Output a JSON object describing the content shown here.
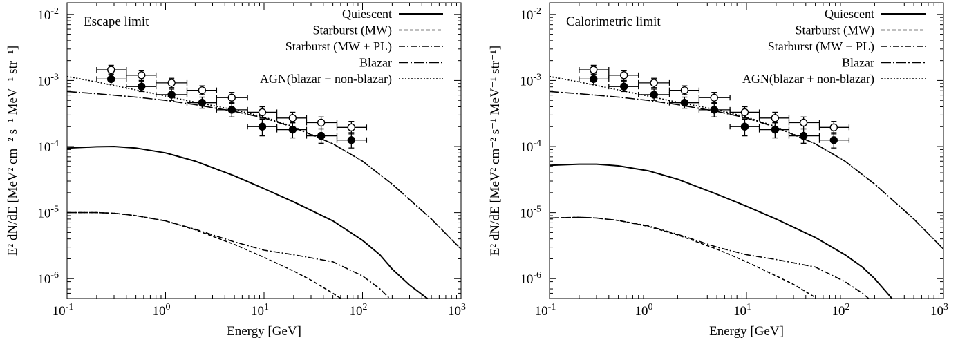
{
  "chart_data": [
    {
      "type": "line",
      "title": "Escape limit",
      "xlabel": "Energy [GeV]",
      "ylabel": "E² dN/dE [MeV² cm⁻² s⁻¹ MeV⁻¹ str⁻¹]",
      "xscale": "log",
      "yscale": "log",
      "xlim": [
        0.1,
        1000
      ],
      "ylim": [
        5e-07,
        0.015
      ],
      "xticks": [
        {
          "value": 0.1,
          "mant": "10",
          "exp": "-1"
        },
        {
          "value": 1,
          "mant": "10",
          "exp": "0"
        },
        {
          "value": 10,
          "mant": "10",
          "exp": "1"
        },
        {
          "value": 100,
          "mant": "10",
          "exp": "2"
        },
        {
          "value": 1000,
          "mant": "10",
          "exp": "3"
        }
      ],
      "yticks": [
        {
          "value": 1e-06,
          "mant": "10",
          "exp": "-6"
        },
        {
          "value": 1e-05,
          "mant": "10",
          "exp": "-5"
        },
        {
          "value": 0.0001,
          "mant": "10",
          "exp": "-4"
        },
        {
          "value": 0.001,
          "mant": "10",
          "exp": "-3"
        },
        {
          "value": 0.01,
          "mant": "10",
          "exp": "-2"
        }
      ],
      "legend_position": "top-right",
      "series": [
        {
          "name": "Quiescent",
          "style": "solid",
          "x": [
            0.1,
            0.2,
            0.3,
            0.5,
            1,
            2,
            5,
            10,
            20,
            50,
            100,
            150,
            200,
            300,
            500
          ],
          "y": [
            9.5e-05,
            9.9e-05,
            0.0001,
            9.5e-05,
            8e-05,
            6e-05,
            3.6e-05,
            2.3e-05,
            1.45e-05,
            7.5e-06,
            3.8e-06,
            2.3e-06,
            1.4e-06,
            8e-07,
            4.5e-07
          ]
        },
        {
          "name": "Starburst (MW)",
          "style": "dash-short",
          "x": [
            0.1,
            0.2,
            0.3,
            0.5,
            1,
            2,
            5,
            10,
            20,
            30,
            50,
            70
          ],
          "y": [
            1e-05,
            1e-05,
            9.8e-06,
            9e-06,
            7.5e-06,
            5.5e-06,
            3.3e-06,
            2.1e-06,
            1.3e-06,
            9.5e-07,
            6e-07,
            4.3e-07
          ]
        },
        {
          "name": "Starburst (MW + PL)",
          "style": "dash-dot",
          "x": [
            0.1,
            0.2,
            0.3,
            0.5,
            1,
            2,
            5,
            10,
            20,
            50,
            100,
            150,
            200
          ],
          "y": [
            1e-05,
            1e-05,
            9.8e-06,
            9e-06,
            7.5e-06,
            5.6e-06,
            3.6e-06,
            2.7e-06,
            2.3e-06,
            1.8e-06,
            1.1e-06,
            7e-07,
            4.6e-07
          ]
        },
        {
          "name": "Blazar",
          "style": "dash-dot-long",
          "x": [
            0.1,
            0.2,
            0.5,
            1,
            2,
            5,
            10,
            20,
            50,
            100,
            200,
            500,
            1000
          ],
          "y": [
            0.00068,
            0.00063,
            0.00056,
            0.0005,
            0.00043,
            0.00034,
            0.00027,
            0.000195,
            0.00011,
            6e-05,
            2.7e-05,
            8e-06,
            2.8e-06
          ]
        },
        {
          "name": "AGN(blazar + non-blazar)",
          "style": "dotted",
          "x": [
            0.1,
            0.2,
            0.5,
            1,
            2,
            5,
            10,
            20,
            50,
            100,
            200,
            500,
            1000
          ],
          "y": [
            0.00115,
            0.00095,
            0.00072,
            0.00058,
            0.00047,
            0.00036,
            0.00028,
            0.0002,
            0.00011,
            6e-05,
            2.7e-05,
            8e-06,
            2.8e-06
          ]
        }
      ],
      "data_points": [
        {
          "name": "open",
          "x": [
            0.28,
            0.57,
            1.15,
            2.35,
            4.7,
            9.6,
            19.5,
            38,
            77
          ],
          "xlow": [
            0.2,
            0.4,
            0.8,
            1.65,
            3.3,
            6.8,
            13.5,
            27,
            55
          ],
          "xhigh": [
            0.4,
            0.8,
            1.65,
            3.3,
            6.8,
            13.5,
            27,
            55,
            110
          ],
          "y": [
            0.00145,
            0.0012,
            0.00092,
            0.00071,
            0.00055,
            0.00033,
            0.00027,
            0.00023,
            0.000195
          ],
          "ylow": [
            0.00125,
            0.001,
            0.00078,
            0.00061,
            0.00046,
            0.00027,
            0.00022,
            0.000185,
            0.000155
          ],
          "yhigh": [
            0.0017,
            0.0014,
            0.00108,
            0.00083,
            0.00066,
            0.0004,
            0.00033,
            0.00028,
            0.00024
          ]
        },
        {
          "name": "filled",
          "x": [
            0.28,
            0.57,
            1.15,
            2.35,
            4.7,
            9.6,
            19.5,
            38,
            77
          ],
          "xlow": [
            0.2,
            0.4,
            0.8,
            1.65,
            3.3,
            6.8,
            13.5,
            27,
            55
          ],
          "xhigh": [
            0.4,
            0.8,
            1.65,
            3.3,
            6.8,
            13.5,
            27,
            55,
            110
          ],
          "y": [
            0.00105,
            0.00081,
            0.00061,
            0.00046,
            0.00036,
            0.0002,
            0.00018,
            0.000145,
            0.000125
          ],
          "ylow": [
            0.00088,
            0.00068,
            0.0005,
            0.00038,
            0.00028,
            0.000145,
            0.000135,
            0.000112,
            9.5e-05
          ],
          "yhigh": [
            0.00125,
            0.00098,
            0.00074,
            0.00056,
            0.00045,
            0.00026,
            0.00023,
            0.000185,
            0.000162
          ]
        }
      ]
    },
    {
      "type": "line",
      "title": "Calorimetric limit",
      "xlabel": "Energy [GeV]",
      "ylabel": "E² dN/dE [MeV² cm⁻² s⁻¹ MeV⁻¹ str⁻¹]",
      "xscale": "log",
      "yscale": "log",
      "xlim": [
        0.1,
        1000
      ],
      "ylim": [
        5e-07,
        0.015
      ],
      "xticks": [
        {
          "value": 0.1,
          "mant": "10",
          "exp": "-1"
        },
        {
          "value": 1,
          "mant": "10",
          "exp": "0"
        },
        {
          "value": 10,
          "mant": "10",
          "exp": "1"
        },
        {
          "value": 100,
          "mant": "10",
          "exp": "2"
        },
        {
          "value": 1000,
          "mant": "10",
          "exp": "3"
        }
      ],
      "yticks": [
        {
          "value": 1e-06,
          "mant": "10",
          "exp": "-6"
        },
        {
          "value": 1e-05,
          "mant": "10",
          "exp": "-5"
        },
        {
          "value": 0.0001,
          "mant": "10",
          "exp": "-4"
        },
        {
          "value": 0.001,
          "mant": "10",
          "exp": "-3"
        },
        {
          "value": 0.01,
          "mant": "10",
          "exp": "-2"
        }
      ],
      "legend_position": "top-right",
      "series": [
        {
          "name": "Quiescent",
          "style": "solid",
          "x": [
            0.1,
            0.2,
            0.3,
            0.5,
            1,
            2,
            5,
            10,
            20,
            50,
            100,
            150,
            200,
            300
          ],
          "y": [
            5.2e-05,
            5.4e-05,
            5.4e-05,
            5.1e-05,
            4.3e-05,
            3.2e-05,
            1.9e-05,
            1.25e-05,
            8e-06,
            4.2e-06,
            2.3e-06,
            1.5e-06,
            1e-06,
            5e-07
          ]
        },
        {
          "name": "Starburst (MW)",
          "style": "dash-short",
          "x": [
            0.1,
            0.2,
            0.3,
            0.5,
            1,
            2,
            5,
            10,
            20,
            30,
            50
          ],
          "y": [
            8.3e-06,
            8.5e-06,
            8.3e-06,
            7.6e-06,
            6.2e-06,
            4.6e-06,
            2.8e-06,
            1.8e-06,
            1.1e-06,
            8.2e-07,
            5.2e-07
          ]
        },
        {
          "name": "Starburst (MW + PL)",
          "style": "dash-dot",
          "x": [
            0.1,
            0.2,
            0.3,
            0.5,
            1,
            2,
            5,
            10,
            20,
            50,
            100,
            150,
            200
          ],
          "y": [
            8.3e-06,
            8.5e-06,
            8.3e-06,
            7.6e-06,
            6.3e-06,
            4.7e-06,
            3e-06,
            2.3e-06,
            1.95e-06,
            1.5e-06,
            9e-07,
            6e-07,
            4.2e-07
          ]
        },
        {
          "name": "Blazar",
          "style": "dash-dot-long",
          "x": [
            0.1,
            0.2,
            0.5,
            1,
            2,
            5,
            10,
            20,
            50,
            100,
            200,
            500,
            1000
          ],
          "y": [
            0.00068,
            0.00063,
            0.00056,
            0.0005,
            0.00043,
            0.00034,
            0.00027,
            0.000195,
            0.00011,
            6e-05,
            2.7e-05,
            8e-06,
            2.8e-06
          ]
        },
        {
          "name": "AGN(blazar + non-blazar)",
          "style": "dotted",
          "x": [
            0.1,
            0.2,
            0.5,
            1,
            2,
            5,
            10,
            20,
            50,
            100,
            200,
            500,
            1000
          ],
          "y": [
            0.00115,
            0.00095,
            0.00072,
            0.00058,
            0.00047,
            0.00036,
            0.00028,
            0.0002,
            0.00011,
            6e-05,
            2.7e-05,
            8e-06,
            2.8e-06
          ]
        }
      ],
      "data_points": [
        {
          "name": "open",
          "x": [
            0.28,
            0.57,
            1.15,
            2.35,
            4.7,
            9.6,
            19.5,
            38,
            77
          ],
          "xlow": [
            0.2,
            0.4,
            0.8,
            1.65,
            3.3,
            6.8,
            13.5,
            27,
            55
          ],
          "xhigh": [
            0.4,
            0.8,
            1.65,
            3.3,
            6.8,
            13.5,
            27,
            55,
            110
          ],
          "y": [
            0.00145,
            0.0012,
            0.00092,
            0.00071,
            0.00055,
            0.00033,
            0.00027,
            0.00023,
            0.000195
          ],
          "ylow": [
            0.00125,
            0.001,
            0.00078,
            0.00061,
            0.00046,
            0.00027,
            0.00022,
            0.000185,
            0.000155
          ],
          "yhigh": [
            0.0017,
            0.0014,
            0.00108,
            0.00083,
            0.00066,
            0.0004,
            0.00033,
            0.00028,
            0.00024
          ]
        },
        {
          "name": "filled",
          "x": [
            0.28,
            0.57,
            1.15,
            2.35,
            4.7,
            9.6,
            19.5,
            38,
            77
          ],
          "xlow": [
            0.2,
            0.4,
            0.8,
            1.65,
            3.3,
            6.8,
            13.5,
            27,
            55
          ],
          "xhigh": [
            0.4,
            0.8,
            1.65,
            3.3,
            6.8,
            13.5,
            27,
            55,
            110
          ],
          "y": [
            0.00105,
            0.00081,
            0.00061,
            0.00046,
            0.00036,
            0.0002,
            0.00018,
            0.000145,
            0.000125
          ],
          "ylow": [
            0.00088,
            0.00068,
            0.0005,
            0.00038,
            0.00028,
            0.000145,
            0.000135,
            0.000112,
            9.5e-05
          ],
          "yhigh": [
            0.00125,
            0.00098,
            0.00074,
            0.00056,
            0.00045,
            0.00026,
            0.00023,
            0.000185,
            0.000162
          ]
        }
      ]
    }
  ]
}
